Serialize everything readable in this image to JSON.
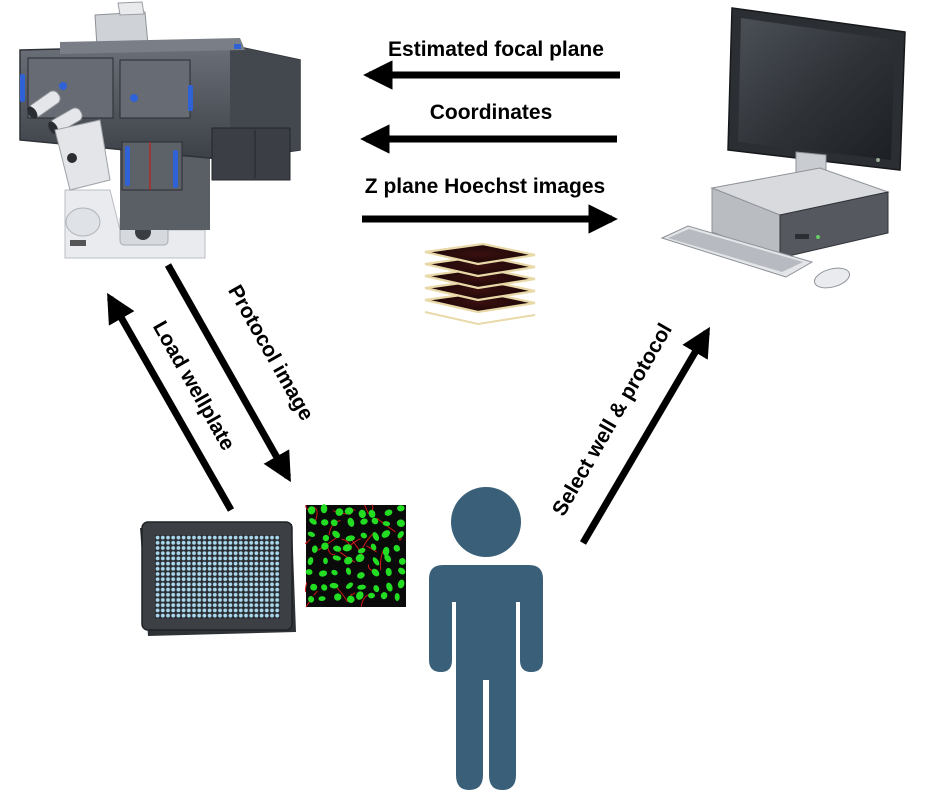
{
  "colors": {
    "arrow": "#000000",
    "person": "#3a6079",
    "cell_green": "#22dd22",
    "cell_red": "#d01818",
    "plate_well": "#a9d8ee",
    "plate_body": "#3c3f44",
    "microscope_body": "#4b4f56",
    "microscope_accent": "#2e62d6",
    "monitor": "#2b2e33"
  },
  "icons": {
    "microscope": "microscope-icon",
    "computer": "computer-workstation-icon",
    "image_stack": "image-stack-icon",
    "wellplate": "wellplate-icon",
    "cell_image": "cell-image-icon",
    "user": "person-icon"
  },
  "arrows": {
    "estimated_focal_plane": "Estimated focal plane",
    "coordinates": "Coordinates",
    "z_plane_hoechst_images": "Z plane Hoechst images",
    "load_wellplate": "Load wellplate",
    "protocol_image": "Protocol image",
    "select_well_protocol": "Select well & protocol"
  }
}
